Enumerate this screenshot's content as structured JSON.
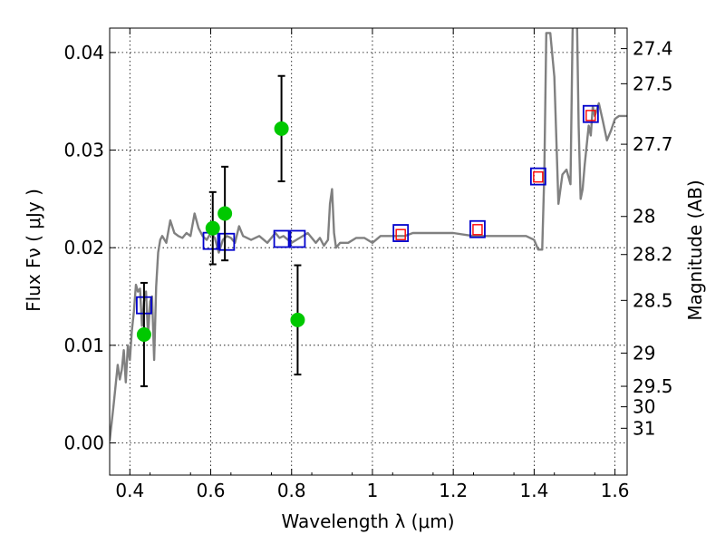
{
  "chart_data": {
    "type": "scatter",
    "xlabel": "Wavelength  λ (μm)",
    "ylabel": "Flux  Fν  ( μJy )",
    "y2label": "Magnitude (AB)",
    "xlim": [
      0.35,
      1.63
    ],
    "ylim": [
      -0.0033,
      0.0425
    ],
    "x_ticks": [
      0.4,
      0.6,
      0.8,
      1.0,
      1.2,
      1.4,
      1.6
    ],
    "x_tick_labels": [
      "0.4",
      "0.6",
      "0.8",
      "1",
      "1.2",
      "1.4",
      "1.6"
    ],
    "y_ticks": [
      0.0,
      0.01,
      0.02,
      0.03,
      0.04
    ],
    "y_tick_labels": [
      "0.00",
      "0.01",
      "0.02",
      "0.03",
      "0.04"
    ],
    "y2_ticks": [
      {
        "label": "27.4",
        "flux": 0.0404
      },
      {
        "label": "27.5",
        "flux": 0.0368
      },
      {
        "label": "27.7",
        "flux": 0.0306
      },
      {
        "label": "28",
        "flux": 0.0232
      },
      {
        "label": "28.2",
        "flux": 0.0193
      },
      {
        "label": "28.5",
        "flux": 0.0146
      },
      {
        "label": "29",
        "flux": 0.0092
      },
      {
        "label": "29.5",
        "flux": 0.0058
      },
      {
        "label": "30",
        "flux": 0.0037
      },
      {
        "label": "31",
        "flux": 0.0015
      }
    ],
    "grid": true,
    "series": [
      {
        "kind": "model_sed_curve",
        "color": "#808080",
        "x": [
          0.35,
          0.36,
          0.37,
          0.375,
          0.38,
          0.385,
          0.39,
          0.395,
          0.4,
          0.405,
          0.41,
          0.415,
          0.42,
          0.425,
          0.43,
          0.435,
          0.44,
          0.445,
          0.45,
          0.455,
          0.46,
          0.465,
          0.47,
          0.475,
          0.48,
          0.49,
          0.5,
          0.51,
          0.52,
          0.53,
          0.54,
          0.55,
          0.56,
          0.57,
          0.58,
          0.59,
          0.6,
          0.61,
          0.62,
          0.63,
          0.64,
          0.65,
          0.66,
          0.67,
          0.68,
          0.7,
          0.72,
          0.74,
          0.76,
          0.77,
          0.78,
          0.8,
          0.82,
          0.84,
          0.86,
          0.87,
          0.88,
          0.89,
          0.895,
          0.9,
          0.905,
          0.91,
          0.92,
          0.94,
          0.96,
          0.98,
          1.0,
          1.02,
          1.05,
          1.08,
          1.1,
          1.15,
          1.2,
          1.25,
          1.3,
          1.35,
          1.38,
          1.4,
          1.41,
          1.42,
          1.425,
          1.43,
          1.44,
          1.45,
          1.46,
          1.47,
          1.48,
          1.49,
          1.495,
          1.5,
          1.505,
          1.51,
          1.515,
          1.52,
          1.525,
          1.53,
          1.535,
          1.54,
          1.545,
          1.55,
          1.56,
          1.57,
          1.58,
          1.59,
          1.6,
          1.61,
          1.62,
          1.63
        ],
        "y": [
          0.0002,
          0.004,
          0.008,
          0.0065,
          0.0075,
          0.0095,
          0.0062,
          0.01,
          0.0085,
          0.0115,
          0.0135,
          0.0162,
          0.0155,
          0.0158,
          0.012,
          0.0145,
          0.0155,
          0.011,
          0.0145,
          0.015,
          0.0085,
          0.016,
          0.0195,
          0.0208,
          0.0212,
          0.0205,
          0.0228,
          0.0215,
          0.0212,
          0.021,
          0.0215,
          0.0212,
          0.0235,
          0.022,
          0.0212,
          0.0208,
          0.0215,
          0.021,
          0.0195,
          0.0208,
          0.0212,
          0.021,
          0.0205,
          0.0222,
          0.0212,
          0.0208,
          0.0212,
          0.0205,
          0.0215,
          0.021,
          0.0212,
          0.0205,
          0.021,
          0.0215,
          0.0205,
          0.021,
          0.0202,
          0.0208,
          0.0245,
          0.026,
          0.0215,
          0.02,
          0.0205,
          0.0205,
          0.021,
          0.021,
          0.0205,
          0.0212,
          0.0212,
          0.0212,
          0.0215,
          0.0215,
          0.0215,
          0.0212,
          0.0212,
          0.0212,
          0.0212,
          0.0208,
          0.0198,
          0.0198,
          0.0275,
          0.042,
          0.042,
          0.0375,
          0.0245,
          0.0275,
          0.028,
          0.0265,
          0.042,
          0.048,
          0.046,
          0.0325,
          0.025,
          0.026,
          0.0285,
          0.0305,
          0.0325,
          0.0315,
          0.0345,
          0.0335,
          0.0348,
          0.033,
          0.031,
          0.032,
          0.0332,
          0.0335,
          0.0335,
          0.0335
        ]
      },
      {
        "kind": "model_photometry",
        "marker": "open-square",
        "color": "#0000cc",
        "x": [
          0.435,
          0.6,
          0.64,
          0.775,
          0.815,
          1.07,
          1.26,
          1.41,
          1.54
        ],
        "y": [
          0.0141,
          0.0207,
          0.0206,
          0.0209,
          0.0209,
          0.0215,
          0.0219,
          0.0273,
          0.0337
        ]
      },
      {
        "kind": "photometry_inner",
        "marker": "open-square",
        "color": "#ff0000",
        "x": [
          1.07,
          1.26,
          1.41,
          1.54
        ],
        "y": [
          0.0213,
          0.0218,
          0.0272,
          0.0335
        ]
      },
      {
        "kind": "observed",
        "marker": "filled-circle",
        "color": "#00c800",
        "x": [
          0.435,
          0.605,
          0.635,
          0.775,
          0.815
        ],
        "y": [
          0.0111,
          0.022,
          0.0235,
          0.0322,
          0.0126
        ],
        "err": [
          0.0053,
          0.0037,
          0.0048,
          0.0054,
          0.0056
        ]
      }
    ]
  }
}
